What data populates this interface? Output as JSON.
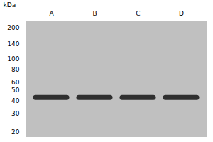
{
  "chart_data": {
    "type": "band",
    "ylabel": "kDa",
    "categories": [
      "A",
      "B",
      "C",
      "D"
    ],
    "values": [
      43,
      43,
      43,
      43
    ],
    "color": "#1a1a1a",
    "log": "y",
    "ylim": [
      18,
      230
    ],
    "yticks": [
      200,
      140,
      100,
      80,
      60,
      50,
      40,
      30,
      20
    ],
    "grid": false
  }
}
